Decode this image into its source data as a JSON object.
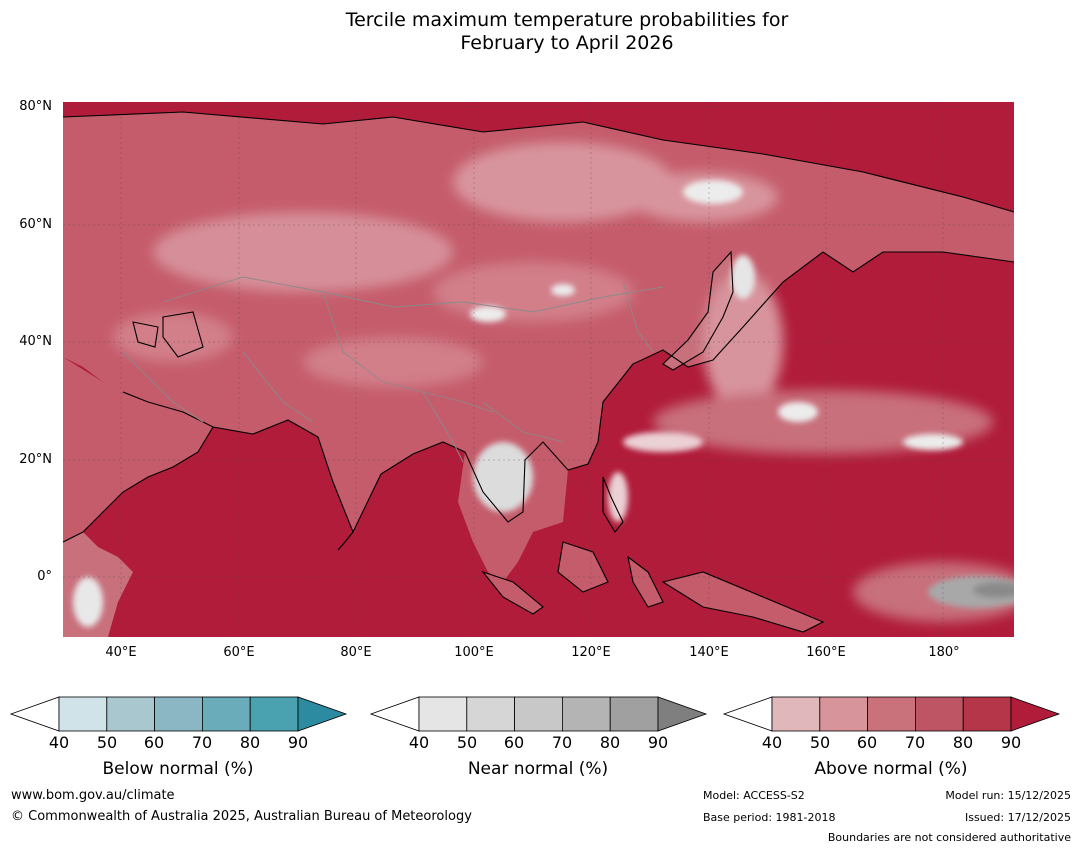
{
  "title": {
    "line1": "Tercile maximum temperature probabilities for",
    "line2": "February to April 2026"
  },
  "map": {
    "latitude_labels": [
      "80°N",
      "60°N",
      "40°N",
      "20°N",
      "0°"
    ],
    "longitude_labels": [
      "40°E",
      "60°E",
      "80°E",
      "100°E",
      "120°E",
      "140°E",
      "160°E",
      "180°"
    ],
    "extent": {
      "lon_min": 30,
      "lon_max": 192,
      "lat_min": -10,
      "lat_max": 81
    },
    "dominant_category": "Above normal",
    "dominant_probability": "90+",
    "colors": {
      "ocean_high": "#b01c3a",
      "land": "#c9606f",
      "coast": "#000000",
      "border": "#8a8a8a"
    }
  },
  "legends": [
    {
      "name": "below",
      "title": "Below normal (%)",
      "ticks": [
        "40",
        "50",
        "60",
        "70",
        "80",
        "90"
      ],
      "colors": [
        "#cfe3e8",
        "#a8c7cf",
        "#8ab7c3",
        "#6aacba",
        "#4aa1b0",
        "#2c8ba0"
      ]
    },
    {
      "name": "near",
      "title": "Near normal (%)",
      "ticks": [
        "40",
        "50",
        "60",
        "70",
        "80",
        "90"
      ],
      "colors": [
        "#e5e5e5",
        "#d6d6d6",
        "#c8c8c8",
        "#b4b4b4",
        "#a0a0a0",
        "#7f7f7f"
      ]
    },
    {
      "name": "above",
      "title": "Above normal (%)",
      "ticks": [
        "40",
        "50",
        "60",
        "70",
        "80",
        "90"
      ],
      "colors": [
        "#e0b8bc",
        "#d7949b",
        "#ca727c",
        "#bd5564",
        "#b53549",
        "#b01c3a"
      ]
    }
  ],
  "footer": {
    "website": "www.bom.gov.au/climate",
    "copyright": "© Commonwealth of Australia 2025, Australian Bureau of Meteorology",
    "model": "Model: ACCESS-S2",
    "base_period": "Base period: 1981-2018",
    "model_run": "Model run: 15/12/2025",
    "issued": "Issued: 17/12/2025",
    "disclaimer": "Boundaries are not considered authoritative"
  }
}
